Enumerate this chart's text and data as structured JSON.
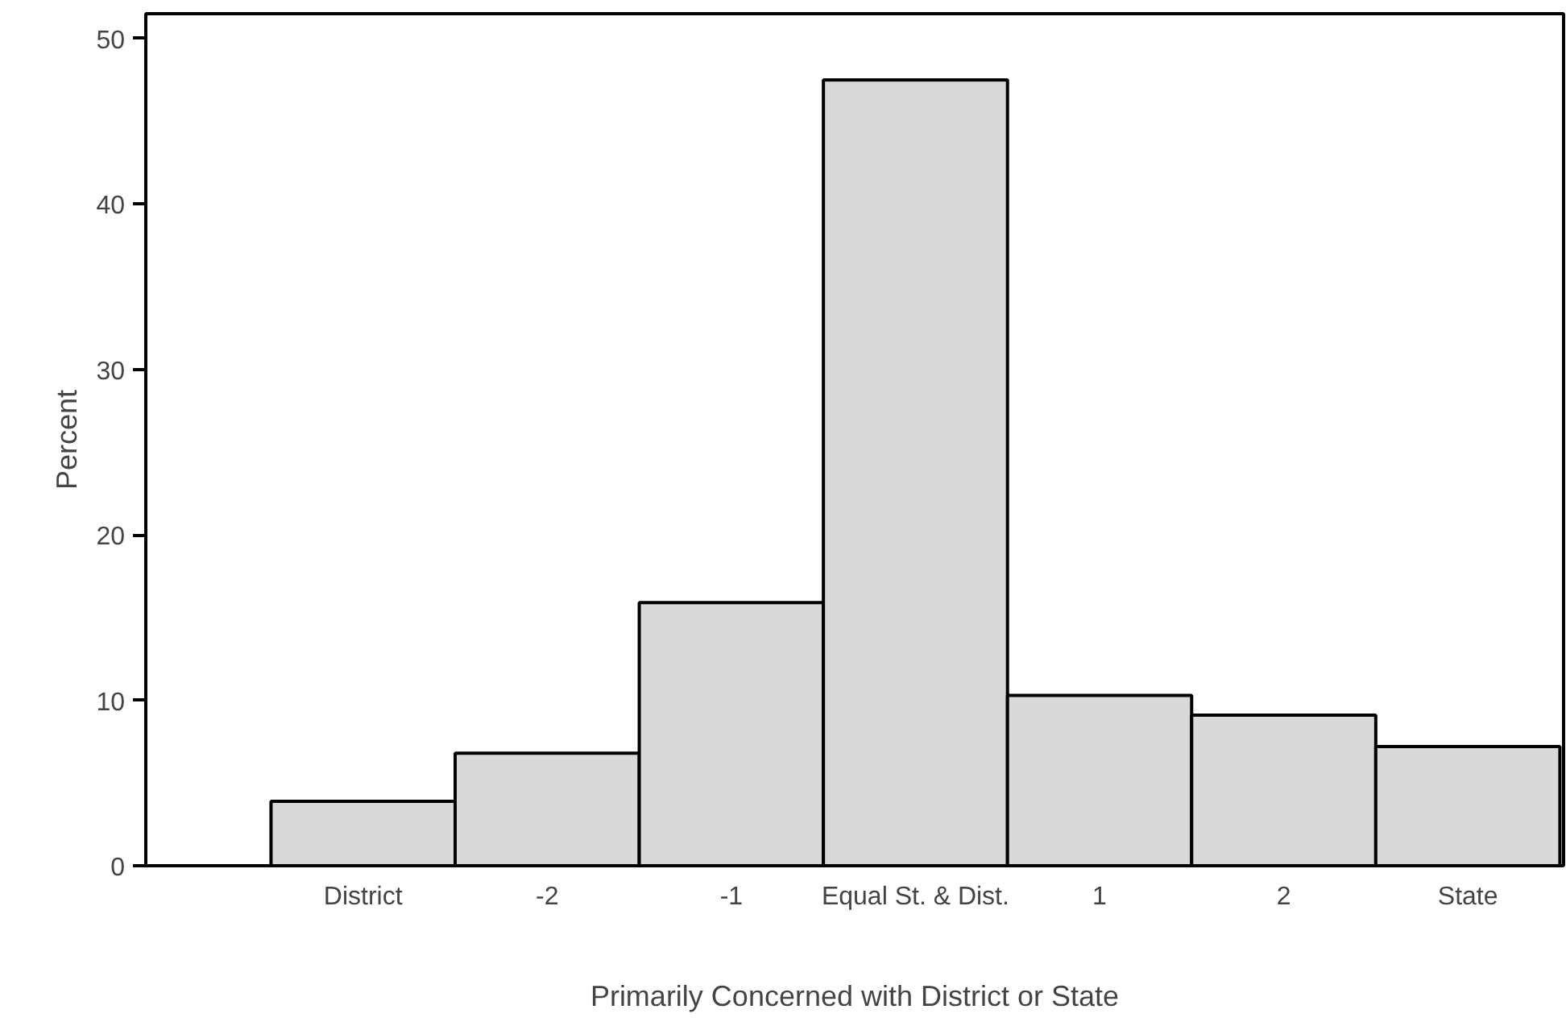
{
  "chart_data": {
    "type": "bar",
    "xlabel": "Primarily Concerned with District or State",
    "ylabel": "Percent",
    "categories": [
      "District",
      "-2",
      "-1",
      "Equal St. & Dist.",
      "1",
      "2",
      "State"
    ],
    "values": [
      3.9,
      6.8,
      15.9,
      47.5,
      10.3,
      9.1,
      7.2
    ],
    "color": "#d9d9d9",
    "ylim": [
      0,
      51.5
    ],
    "yticks": [
      0,
      10,
      20,
      30,
      40,
      50
    ],
    "grid": false
  }
}
